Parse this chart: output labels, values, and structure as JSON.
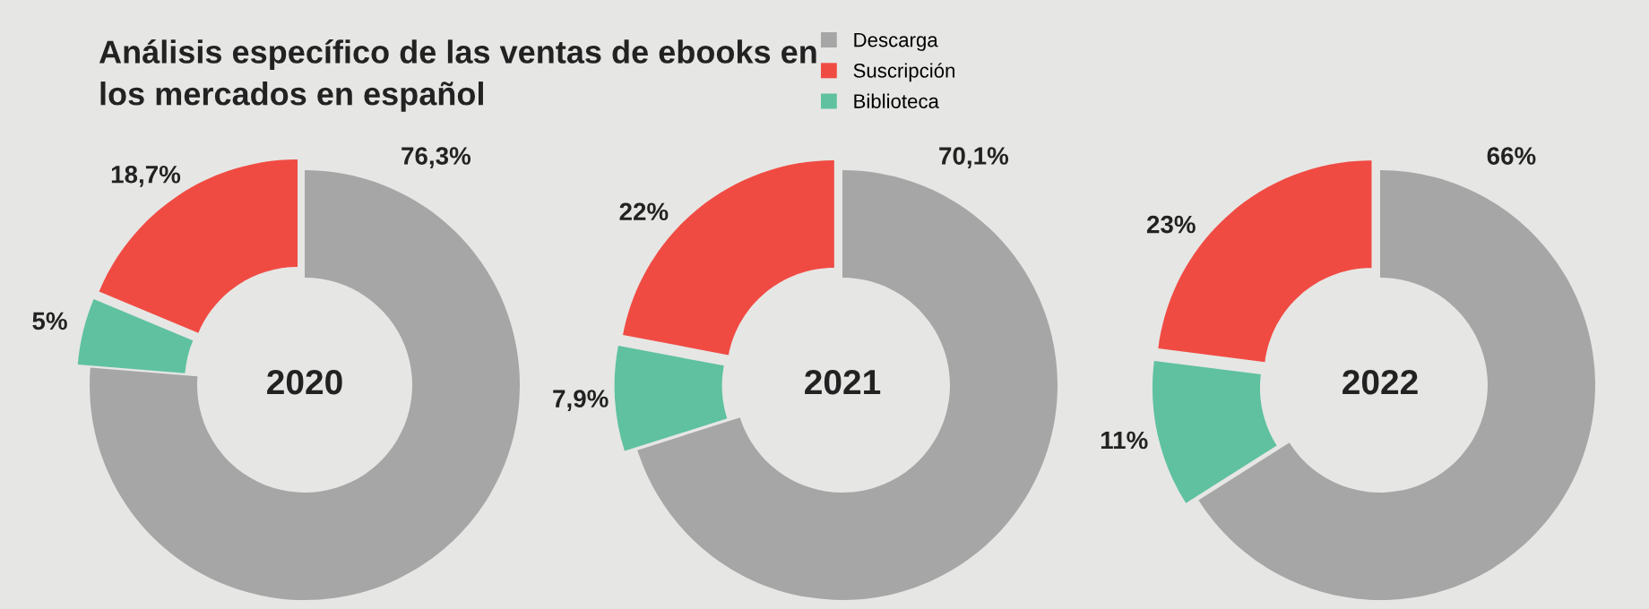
{
  "chart_data": [
    {
      "type": "donut",
      "title": "2020",
      "annotations": [
        "Análisis específico de las ventas de ebooks en\nlos mercados en español"
      ],
      "legend": "top",
      "categories": [
        "Descarga",
        "Suscripción",
        "Biblioteca"
      ],
      "values": [
        76.3,
        18.7,
        5
      ],
      "colors": [
        "#a6a6a6",
        "#f04b43",
        "#5fc1a0"
      ],
      "value_labels": [
        "76,3%",
        "18,7%",
        "5%"
      ]
    },
    {
      "type": "donut",
      "title": "2021",
      "values": [
        70.1,
        22,
        7.9
      ],
      "colors": [
        "#a6a6a6",
        "#f04b43",
        "#5fc1a0"
      ],
      "value_labels": [
        "70,1%",
        "22%",
        "7,9%"
      ]
    },
    {
      "type": "donut",
      "title": "2022",
      "values": [
        66,
        23,
        11
      ],
      "colors": [
        "#a6a6a6",
        "#f04b43",
        "#5fc1a0"
      ],
      "value_labels": [
        "66%",
        "23%",
        "11%"
      ]
    }
  ]
}
